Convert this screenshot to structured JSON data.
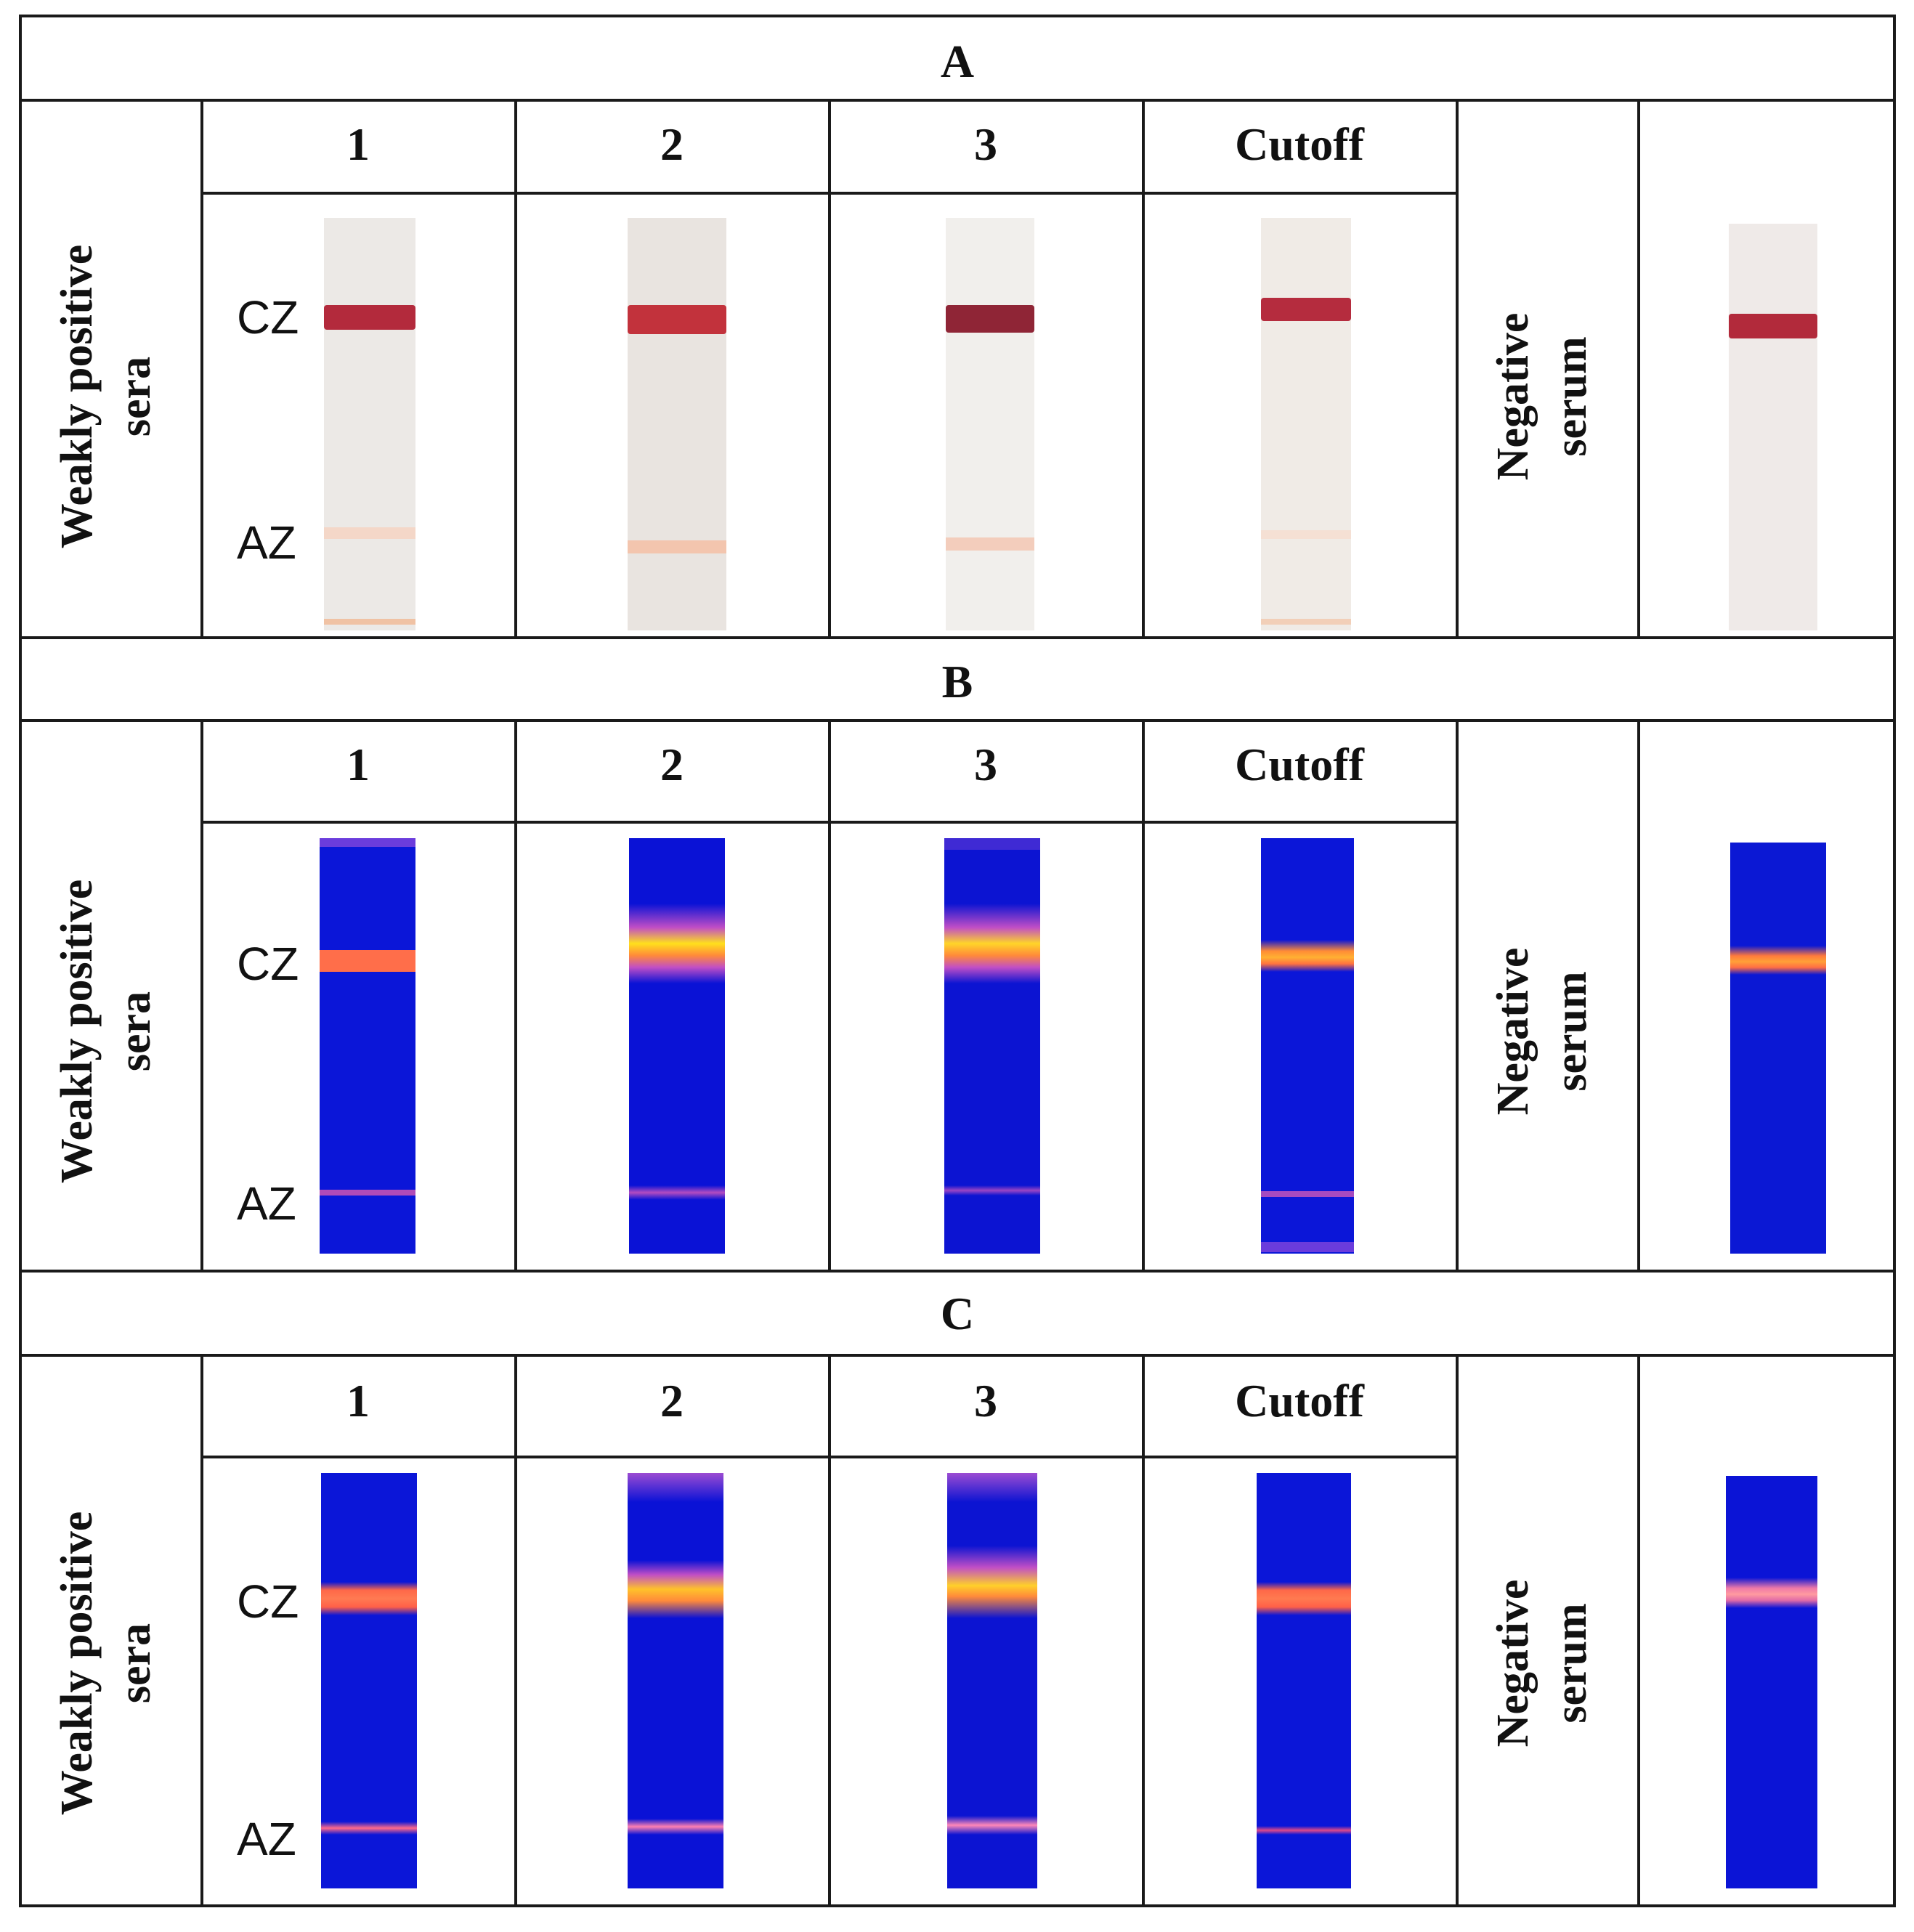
{
  "panels": [
    {
      "title": "A",
      "row_label": [
        "Weakly positive",
        "sera"
      ],
      "columns": [
        "1",
        "2",
        "3",
        "Cutoff"
      ],
      "negative_label": [
        "Negative",
        "serum"
      ],
      "zone_labels": [
        "CZ",
        "AZ"
      ],
      "theme": "visible",
      "strips": [
        "sample-1",
        "sample-2",
        "sample-3",
        "cutoff",
        "negative"
      ]
    },
    {
      "title": "B",
      "row_label": [
        "Weakly positive",
        "sera"
      ],
      "columns": [
        "1",
        "2",
        "3",
        "Cutoff"
      ],
      "negative_label": [
        "Negative",
        "serum"
      ],
      "zone_labels": [
        "CZ",
        "AZ"
      ],
      "theme": "fluorescent",
      "strips": [
        "sample-1",
        "sample-2",
        "sample-3",
        "cutoff",
        "negative"
      ]
    },
    {
      "title": "C",
      "row_label": [
        "Weakly positive",
        "sera"
      ],
      "columns": [
        "1",
        "2",
        "3",
        "Cutoff"
      ],
      "negative_label": [
        "Negative",
        "serum"
      ],
      "zone_labels": [
        "CZ",
        "AZ"
      ],
      "theme": "fluorescent",
      "strips": [
        "sample-1",
        "sample-2",
        "sample-3",
        "cutoff",
        "negative"
      ]
    }
  ],
  "colors": {
    "visible_strip": "#ece9e6",
    "visible_cz_band": "#b32a3c",
    "visible_az_band": "#f1c9b8",
    "fluor_strip": "#0a14d8",
    "fluor_cz_band": "#ff7a3c",
    "fluor_cz_core": "#ffd42a",
    "fluor_az_band": "#e0478a"
  }
}
